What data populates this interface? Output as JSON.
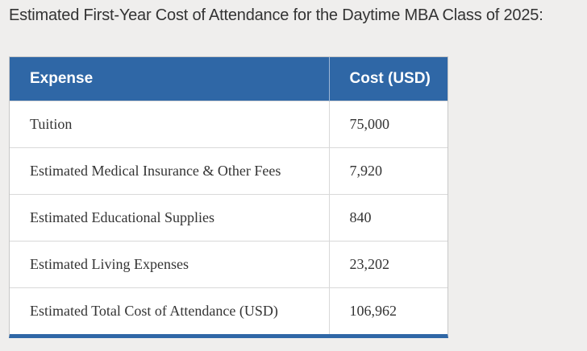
{
  "title": "Estimated First-Year Cost of Attendance for the Daytime MBA Class of 2025:",
  "table": {
    "headers": {
      "expense": "Expense",
      "cost": "Cost (USD)"
    },
    "rows": [
      {
        "expense": "Tuition",
        "cost": "75,000"
      },
      {
        "expense": "Estimated Medical Insurance & Other Fees",
        "cost": "7,920"
      },
      {
        "expense": "Estimated Educational Supplies",
        "cost": "840"
      },
      {
        "expense": "Estimated Living Expenses",
        "cost": "23,202"
      },
      {
        "expense": "Estimated Total Cost of Attendance (USD)",
        "cost": "106,962"
      }
    ]
  },
  "colors": {
    "header_bg": "#2f67a6",
    "header_text": "#ffffff",
    "page_bg": "#efeeed",
    "body_text": "#333333"
  }
}
